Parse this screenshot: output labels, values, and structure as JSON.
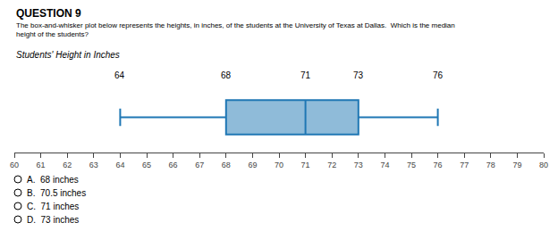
{
  "chart_data": {
    "type": "box",
    "title": "QUESTION 9",
    "subtitle": "The box-and-whisker plot below represents the heights, in inches, of the students at the University of Texas at Dallas.  Which is the median\nheight of the students?",
    "annotations": [
      "Students' Height in Inches"
    ],
    "choices": [
      "A.  68 inches",
      "B.  70.5 inches",
      "C.  71 inches",
      "D.  73 inches"
    ],
    "min": 64,
    "q1": 68,
    "median": 71,
    "q3": 73,
    "max": 76,
    "xlim": [
      60,
      80
    ],
    "xticks": [
      60,
      61,
      62,
      63,
      64,
      65,
      66,
      67,
      68,
      69,
      70,
      71,
      72,
      73,
      74,
      75,
      76,
      77,
      78,
      79,
      80
    ],
    "grid": false,
    "data_labels": true,
    "tick_labels": "x"
  }
}
